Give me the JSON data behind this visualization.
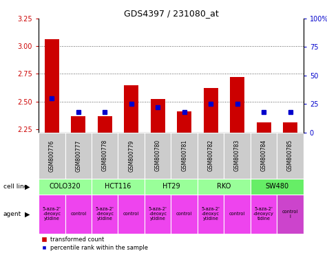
{
  "title": "GDS4397 / 231080_at",
  "samples": [
    "GSM800776",
    "GSM800777",
    "GSM800778",
    "GSM800779",
    "GSM800780",
    "GSM800781",
    "GSM800782",
    "GSM800783",
    "GSM800784",
    "GSM800785"
  ],
  "transformed_counts": [
    3.06,
    2.37,
    2.37,
    2.65,
    2.52,
    2.41,
    2.62,
    2.72,
    2.31,
    2.31
  ],
  "percentile_ranks": [
    30,
    18,
    18,
    25,
    22,
    18,
    25,
    25,
    18,
    18
  ],
  "bar_bottom": 2.22,
  "ylim": [
    2.22,
    3.25
  ],
  "y_ticks": [
    2.25,
    2.5,
    2.75,
    3.0,
    3.25
  ],
  "right_yticks": [
    0,
    25,
    50,
    75,
    100
  ],
  "right_ylim": [
    0,
    100
  ],
  "bar_color": "#cc0000",
  "dot_color": "#0000cc",
  "cell_lines": [
    {
      "name": "COLO320",
      "start": 0,
      "end": 2,
      "color": "#99ff99"
    },
    {
      "name": "HCT116",
      "start": 2,
      "end": 4,
      "color": "#99ff99"
    },
    {
      "name": "HT29",
      "start": 4,
      "end": 6,
      "color": "#99ff99"
    },
    {
      "name": "RKO",
      "start": 6,
      "end": 8,
      "color": "#99ff99"
    },
    {
      "name": "SW480",
      "start": 8,
      "end": 10,
      "color": "#66ee66"
    }
  ],
  "agents": [
    {
      "name": "5-aza-2'\n-deoxyc\nytidine",
      "start": 0,
      "end": 1,
      "color": "#ee44ee"
    },
    {
      "name": "control",
      "start": 1,
      "end": 2,
      "color": "#ee44ee"
    },
    {
      "name": "5-aza-2'\n-deoxyc\nytidine",
      "start": 2,
      "end": 3,
      "color": "#ee44ee"
    },
    {
      "name": "control",
      "start": 3,
      "end": 4,
      "color": "#ee44ee"
    },
    {
      "name": "5-aza-2'\n-deoxyc\nytidine",
      "start": 4,
      "end": 5,
      "color": "#ee44ee"
    },
    {
      "name": "control",
      "start": 5,
      "end": 6,
      "color": "#ee44ee"
    },
    {
      "name": "5-aza-2'\n-deoxyc\nytidine",
      "start": 6,
      "end": 7,
      "color": "#ee44ee"
    },
    {
      "name": "control",
      "start": 7,
      "end": 8,
      "color": "#ee44ee"
    },
    {
      "name": "5-aza-2'\n-deoxycy\ntidine",
      "start": 8,
      "end": 9,
      "color": "#ee44ee"
    },
    {
      "name": "control\nl",
      "start": 9,
      "end": 10,
      "color": "#cc44cc"
    }
  ],
  "grid_color": "#555555",
  "tick_label_color_left": "#cc0000",
  "tick_label_color_right": "#0000cc",
  "fig_width": 4.75,
  "fig_height": 3.84,
  "dpi": 100
}
